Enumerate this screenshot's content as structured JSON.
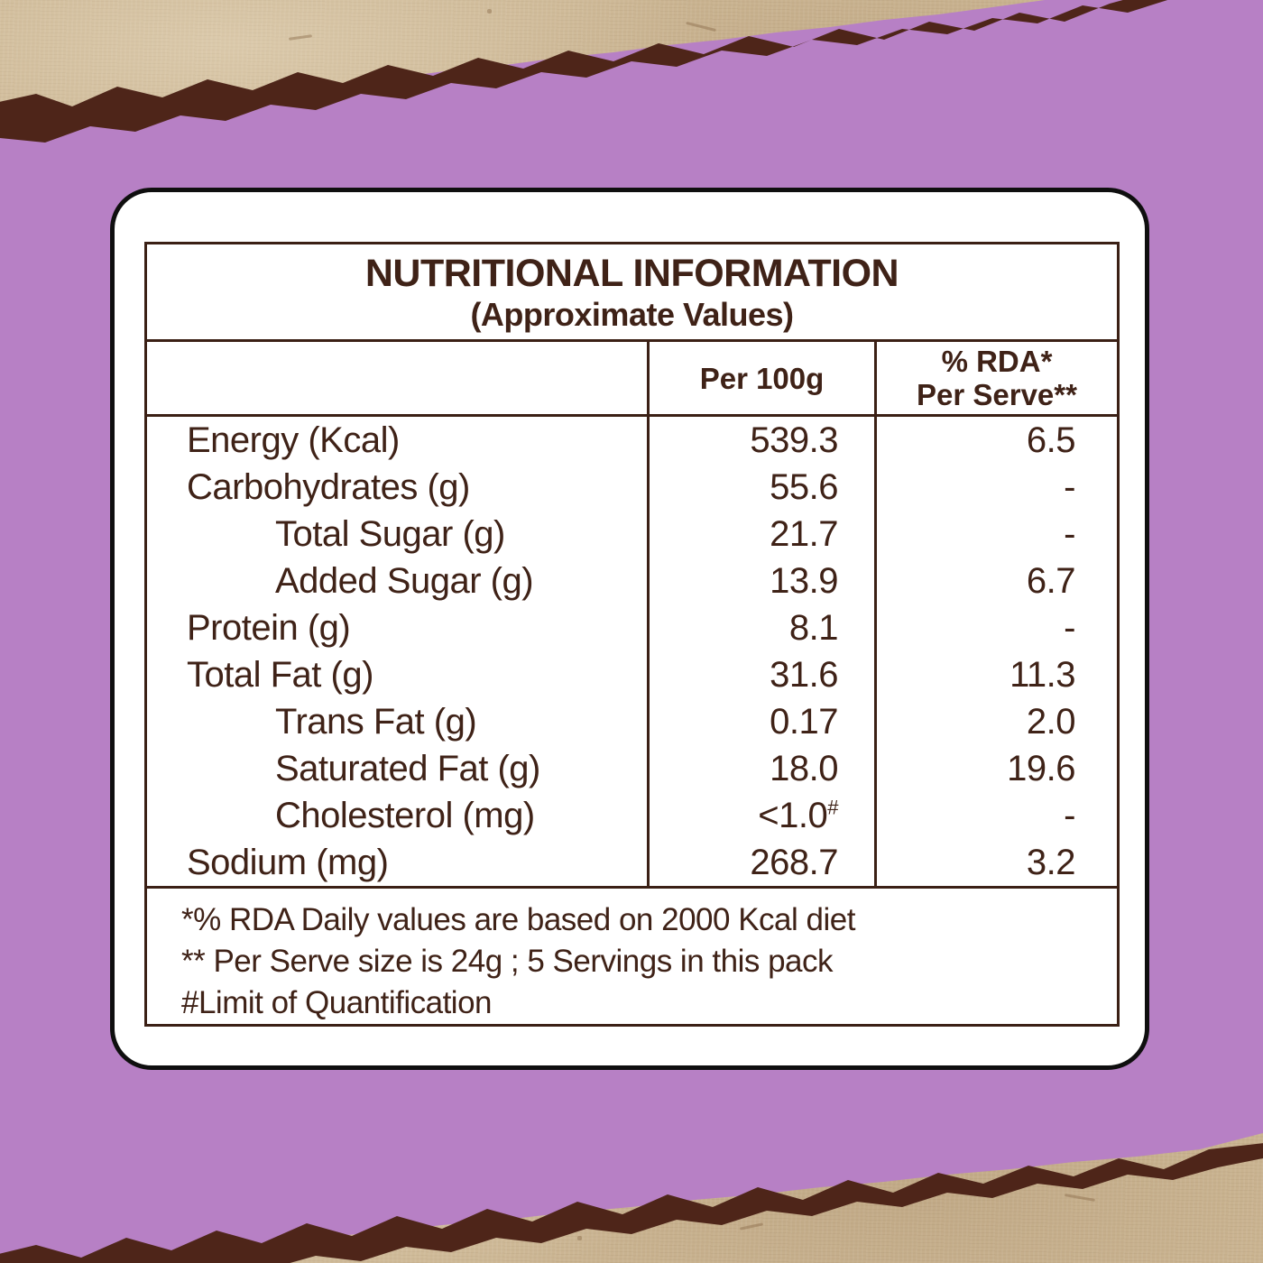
{
  "page": {
    "background_color": "#b780c5",
    "paper_color": "#cbb592",
    "brush_stroke_color": "#4e2519",
    "card_border_color": "#0f0f0f",
    "table_border_color": "#3b2015",
    "text_color": "#3f2217"
  },
  "label": {
    "title": "NUTRITIONAL INFORMATION",
    "subtitle": "(Approximate Values)",
    "columns": {
      "per_100g": "Per 100g",
      "rda_line1": "% RDA*",
      "rda_line2": "Per Serve**"
    },
    "rows": [
      {
        "label": "Energy (Kcal)",
        "indent": false,
        "per100g": "539.3",
        "rda": "6.5"
      },
      {
        "label": "Carbohydrates (g)",
        "indent": false,
        "per100g": "55.6",
        "rda": "-"
      },
      {
        "label": "Total Sugar (g)",
        "indent": true,
        "per100g": "21.7",
        "rda": "-"
      },
      {
        "label": "Added Sugar (g)",
        "indent": true,
        "per100g": "13.9",
        "rda": "6.7"
      },
      {
        "label": "Protein (g)",
        "indent": false,
        "per100g": "8.1",
        "rda": "-"
      },
      {
        "label": "Total Fat (g)",
        "indent": false,
        "per100g": "31.6",
        "rda": "11.3"
      },
      {
        "label": "Trans Fat (g)",
        "indent": true,
        "per100g": "0.17",
        "rda": "2.0"
      },
      {
        "label": "Saturated Fat (g)",
        "indent": true,
        "per100g": "18.0",
        "rda": "19.6"
      },
      {
        "label": "Cholesterol (mg)",
        "indent": true,
        "per100g": "<1.0",
        "per100g_sup": "#",
        "rda": "-"
      },
      {
        "label": "Sodium (mg)",
        "indent": false,
        "per100g": "268.7",
        "rda": "3.2"
      }
    ],
    "footnotes": [
      "*% RDA Daily values are based on 2000 Kcal diet",
      "** Per Serve size is 24g ; 5 Servings in this pack",
      "#Limit of Quantification"
    ]
  }
}
